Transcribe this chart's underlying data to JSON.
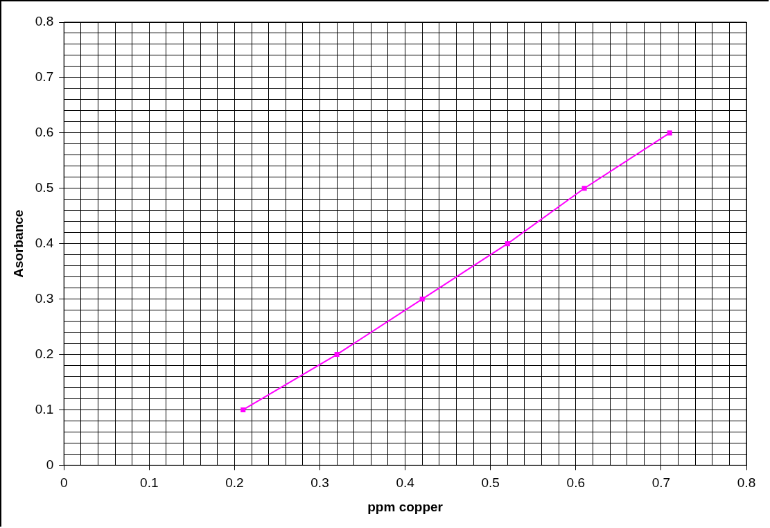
{
  "chart_data": {
    "type": "line",
    "xlabel": "ppm copper",
    "ylabel": "Asorbance",
    "x": [
      0.21,
      0.32,
      0.42,
      0.52,
      0.61,
      0.71
    ],
    "series": [
      {
        "color": "#ff00ff",
        "values": [
          0.1,
          0.2,
          0.3,
          0.4,
          0.5,
          0.6
        ]
      }
    ],
    "xlim": [
      0,
      0.8
    ],
    "ylim": [
      0,
      0.8
    ],
    "xticks": [
      0,
      {
        "value": 0.02,
        "label": null
      },
      {
        "value": 0.04,
        "label": null
      },
      {
        "value": 0.06,
        "label": null
      },
      {
        "value": 0.08,
        "label": null
      },
      0.1,
      {
        "value": 0.12,
        "label": null
      },
      {
        "value": 0.14,
        "label": null
      },
      {
        "value": 0.16,
        "label": null
      },
      {
        "value": 0.18,
        "label": null
      },
      0.2,
      {
        "value": 0.22,
        "label": null
      },
      {
        "value": 0.24,
        "label": null
      },
      {
        "value": 0.26,
        "label": null
      },
      {
        "value": 0.28,
        "label": null
      },
      0.3,
      {
        "value": 0.32,
        "label": null
      },
      {
        "value": 0.34,
        "label": null
      },
      {
        "value": 0.36,
        "label": null
      },
      {
        "value": 0.38,
        "label": null
      },
      0.4,
      {
        "value": 0.42,
        "label": null
      },
      {
        "value": 0.44,
        "label": null
      },
      {
        "value": 0.46,
        "label": null
      },
      {
        "value": 0.48,
        "label": null
      },
      0.5,
      {
        "value": 0.52,
        "label": null
      },
      {
        "value": 0.54,
        "label": null
      },
      {
        "value": 0.56,
        "label": null
      },
      {
        "value": 0.58,
        "label": null
      },
      0.6,
      {
        "value": 0.62,
        "label": null
      },
      {
        "value": 0.64,
        "label": null
      },
      {
        "value": 0.66,
        "label": null
      },
      {
        "value": 0.68,
        "label": null
      },
      0.7,
      {
        "value": 0.72,
        "label": null
      },
      {
        "value": 0.74,
        "label": null
      },
      {
        "value": 0.76,
        "label": null
      },
      {
        "value": 0.78,
        "label": null
      },
      0.8
    ],
    "yticks": [
      0,
      {
        "value": 0.02,
        "label": null
      },
      {
        "value": 0.04,
        "label": null
      },
      {
        "value": 0.06,
        "label": null
      },
      {
        "value": 0.08,
        "label": null
      },
      0.1,
      {
        "value": 0.12,
        "label": null
      },
      {
        "value": 0.14,
        "label": null
      },
      {
        "value": 0.16,
        "label": null
      },
      {
        "value": 0.18,
        "label": null
      },
      0.2,
      {
        "value": 0.22,
        "label": null
      },
      {
        "value": 0.24,
        "label": null
      },
      {
        "value": 0.26,
        "label": null
      },
      {
        "value": 0.28,
        "label": null
      },
      0.3,
      {
        "value": 0.32,
        "label": null
      },
      {
        "value": 0.34,
        "label": null
      },
      {
        "value": 0.36,
        "label": null
      },
      {
        "value": 0.38,
        "label": null
      },
      0.4,
      {
        "value": 0.42,
        "label": null
      },
      {
        "value": 0.44,
        "label": null
      },
      {
        "value": 0.46,
        "label": null
      },
      {
        "value": 0.48,
        "label": null
      },
      0.5,
      {
        "value": 0.52,
        "label": null
      },
      {
        "value": 0.54,
        "label": null
      },
      {
        "value": 0.56,
        "label": null
      },
      {
        "value": 0.58,
        "label": null
      },
      0.6,
      {
        "value": 0.62,
        "label": null
      },
      {
        "value": 0.64,
        "label": null
      },
      {
        "value": 0.66,
        "label": null
      },
      {
        "value": 0.68,
        "label": null
      },
      0.7,
      {
        "value": 0.72,
        "label": null
      },
      {
        "value": 0.74,
        "label": null
      },
      {
        "value": 0.76,
        "label": null
      },
      {
        "value": 0.78,
        "label": null
      },
      0.8
    ],
    "grid": true,
    "legend": false,
    "marker": "square",
    "line_style": "solid"
  }
}
